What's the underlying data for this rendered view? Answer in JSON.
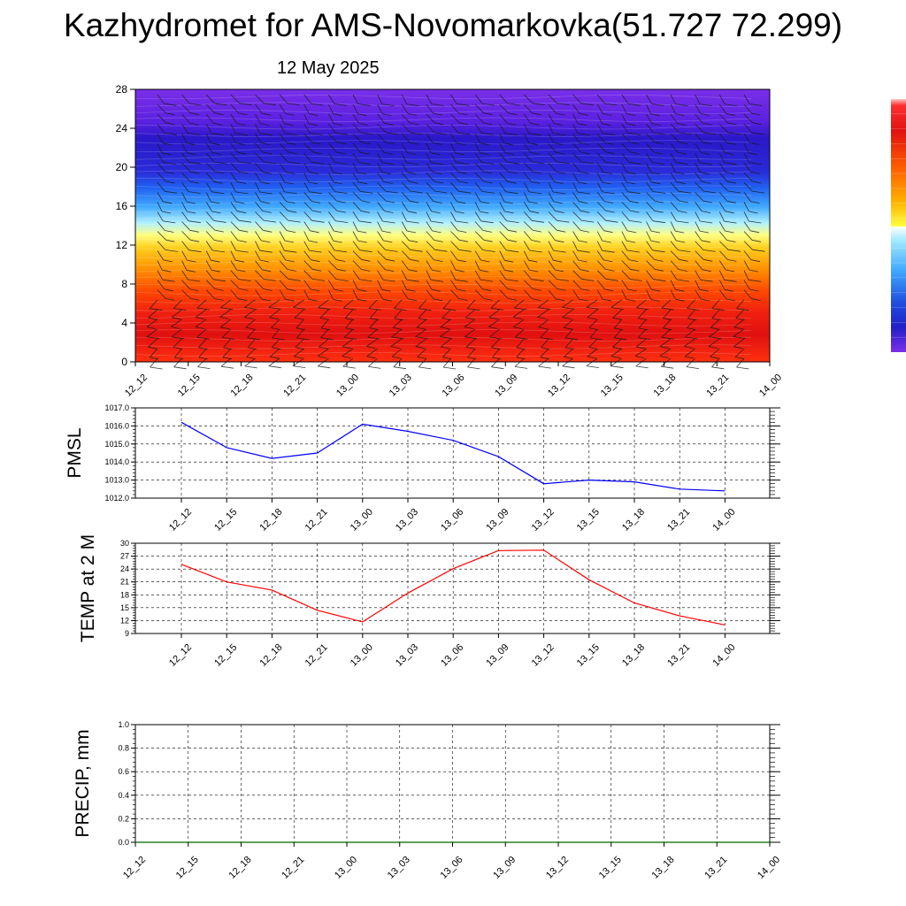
{
  "title": "Kazhydromet for AMS-Novomarkovka(51.727 72.299)",
  "subtitle": "12 May 2025",
  "chart_data": [
    {
      "type": "heatmap",
      "ylim": [
        0,
        28
      ],
      "yticks": [
        "0",
        "4",
        "8",
        "12",
        "16",
        "20",
        "24",
        "28"
      ],
      "xticks": [
        "12_12",
        "12_15",
        "12_18",
        "12_21",
        "13_00",
        "13_03",
        "13_06",
        "13_09",
        "13_12",
        "13_15",
        "13_18",
        "13_21",
        "14_00"
      ],
      "colorbar": [
        "#7a2fe8",
        "#5a20e0",
        "#2020c8",
        "#2040e0",
        "#3070ff",
        "#40a8ff",
        "#7ad8ff",
        "#a8ecff",
        "#ffffff",
        "#ffff50",
        "#ffd020",
        "#ffa000",
        "#ff6000",
        "#ff2000",
        "#e01010",
        "#c80000",
        "#ffb0b0"
      ]
    },
    {
      "type": "line",
      "ylabel": "PMSL",
      "ylim": [
        1012.0,
        1017.0
      ],
      "yticks": [
        "1012.0",
        "1013.0",
        "1014.0",
        "1015.0",
        "1016.0",
        "1017.0"
      ],
      "x": [
        "12_12",
        "12_15",
        "12_18",
        "12_21",
        "13_00",
        "13_03",
        "13_06",
        "13_09",
        "13_12",
        "13_15",
        "13_18",
        "13_21",
        "14_00"
      ],
      "values": [
        1016.2,
        1014.8,
        1014.2,
        1014.5,
        1016.1,
        1015.7,
        1015.2,
        1014.3,
        1012.8,
        1013.0,
        1012.9,
        1012.5,
        1012.4
      ],
      "color": "#0000ff",
      "grid": true
    },
    {
      "type": "line",
      "ylabel": "TEMP at 2 M",
      "ylim": [
        9,
        30
      ],
      "yticks": [
        "9",
        "12",
        "15",
        "18",
        "21",
        "24",
        "27",
        "30"
      ],
      "x": [
        "12_12",
        "12_15",
        "12_18",
        "12_21",
        "13_00",
        "13_03",
        "13_06",
        "13_09",
        "13_12",
        "13_15",
        "13_18",
        "13_21",
        "14_00"
      ],
      "values": [
        25.1,
        21.0,
        19.1,
        14.4,
        11.7,
        18.4,
        24.1,
        28.3,
        28.4,
        21.5,
        16.1,
        13.1,
        11.0
      ],
      "color": "#ff0000",
      "grid": true
    },
    {
      "type": "line",
      "ylabel": "PRECIP, mm",
      "ylim": [
        0.0,
        1.0
      ],
      "yticks": [
        "0.0",
        "0.2",
        "0.4",
        "0.6",
        "0.8",
        "1.0"
      ],
      "xticks": [
        "12_12",
        "12_15",
        "12_18",
        "12_21",
        "13_00",
        "13_03",
        "13_06",
        "13_09",
        "13_12",
        "13_15",
        "13_18",
        "13_21",
        "14_00"
      ],
      "values": [
        0,
        0,
        0,
        0,
        0,
        0,
        0,
        0,
        0,
        0,
        0,
        0,
        0
      ],
      "color": "#006400",
      "grid": true
    }
  ]
}
